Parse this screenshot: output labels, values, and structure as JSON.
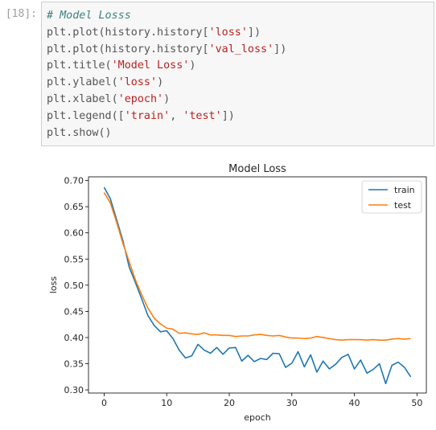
{
  "cell": {
    "prompt": "[18]:",
    "code_lines": [
      [
        {
          "t": "# Model Losss",
          "c": "com"
        }
      ],
      [
        {
          "t": "plt.plot(history.history[",
          "c": "pun"
        },
        {
          "t": "'loss'",
          "c": "str"
        },
        {
          "t": "])",
          "c": "pun"
        }
      ],
      [
        {
          "t": "plt.plot(history.history[",
          "c": "pun"
        },
        {
          "t": "'val_loss'",
          "c": "str"
        },
        {
          "t": "])",
          "c": "pun"
        }
      ],
      [
        {
          "t": "plt.title(",
          "c": "pun"
        },
        {
          "t": "'Model Loss'",
          "c": "str"
        },
        {
          "t": ")",
          "c": "pun"
        }
      ],
      [
        {
          "t": "plt.ylabel(",
          "c": "pun"
        },
        {
          "t": "'loss'",
          "c": "str"
        },
        {
          "t": ")",
          "c": "pun"
        }
      ],
      [
        {
          "t": "plt.xlabel(",
          "c": "pun"
        },
        {
          "t": "'epoch'",
          "c": "str"
        },
        {
          "t": ")",
          "c": "pun"
        }
      ],
      [
        {
          "t": "plt.legend([",
          "c": "pun"
        },
        {
          "t": "'train'",
          "c": "str"
        },
        {
          "t": ", ",
          "c": "pun"
        },
        {
          "t": "'test'",
          "c": "str"
        },
        {
          "t": "])",
          "c": "pun"
        }
      ],
      [
        {
          "t": "plt.show()",
          "c": "pun"
        }
      ]
    ]
  },
  "chart_data": {
    "type": "line",
    "title": "Model Loss",
    "xlabel": "epoch",
    "ylabel": "loss",
    "xlim": [
      -2.5,
      51.5
    ],
    "ylim": [
      0.294,
      0.707
    ],
    "xticks": [
      0,
      10,
      20,
      30,
      40,
      50
    ],
    "yticks": [
      0.3,
      0.35,
      0.4,
      0.45,
      0.5,
      0.55,
      0.6,
      0.65,
      0.7
    ],
    "grid": false,
    "legend_position": "top-right",
    "x": [
      0,
      1,
      2,
      3,
      4,
      5,
      6,
      7,
      8,
      9,
      10,
      11,
      12,
      13,
      14,
      15,
      16,
      17,
      18,
      19,
      20,
      21,
      22,
      23,
      24,
      25,
      26,
      27,
      28,
      29,
      30,
      31,
      32,
      33,
      34,
      35,
      36,
      37,
      38,
      39,
      40,
      41,
      42,
      43,
      44,
      45,
      46,
      47,
      48,
      49
    ],
    "series": [
      {
        "name": "train",
        "color": "#1f77b4",
        "values": [
          0.687,
          0.665,
          0.625,
          0.585,
          0.535,
          0.505,
          0.474,
          0.442,
          0.423,
          0.411,
          0.413,
          0.398,
          0.376,
          0.361,
          0.365,
          0.387,
          0.376,
          0.37,
          0.381,
          0.368,
          0.38,
          0.381,
          0.355,
          0.366,
          0.354,
          0.36,
          0.358,
          0.37,
          0.369,
          0.343,
          0.351,
          0.373,
          0.344,
          0.367,
          0.334,
          0.355,
          0.34,
          0.349,
          0.362,
          0.368,
          0.34,
          0.357,
          0.332,
          0.339,
          0.35,
          0.312,
          0.347,
          0.353,
          0.343,
          0.325
        ]
      },
      {
        "name": "test",
        "color": "#ff7f0e",
        "values": [
          0.677,
          0.657,
          0.62,
          0.58,
          0.545,
          0.51,
          0.482,
          0.456,
          0.437,
          0.426,
          0.418,
          0.416,
          0.408,
          0.409,
          0.407,
          0.406,
          0.409,
          0.405,
          0.405,
          0.404,
          0.404,
          0.402,
          0.403,
          0.403,
          0.405,
          0.406,
          0.404,
          0.403,
          0.404,
          0.401,
          0.399,
          0.399,
          0.398,
          0.399,
          0.402,
          0.4,
          0.398,
          0.396,
          0.395,
          0.396,
          0.396,
          0.396,
          0.395,
          0.396,
          0.395,
          0.395,
          0.397,
          0.398,
          0.397,
          0.398
        ]
      }
    ]
  }
}
